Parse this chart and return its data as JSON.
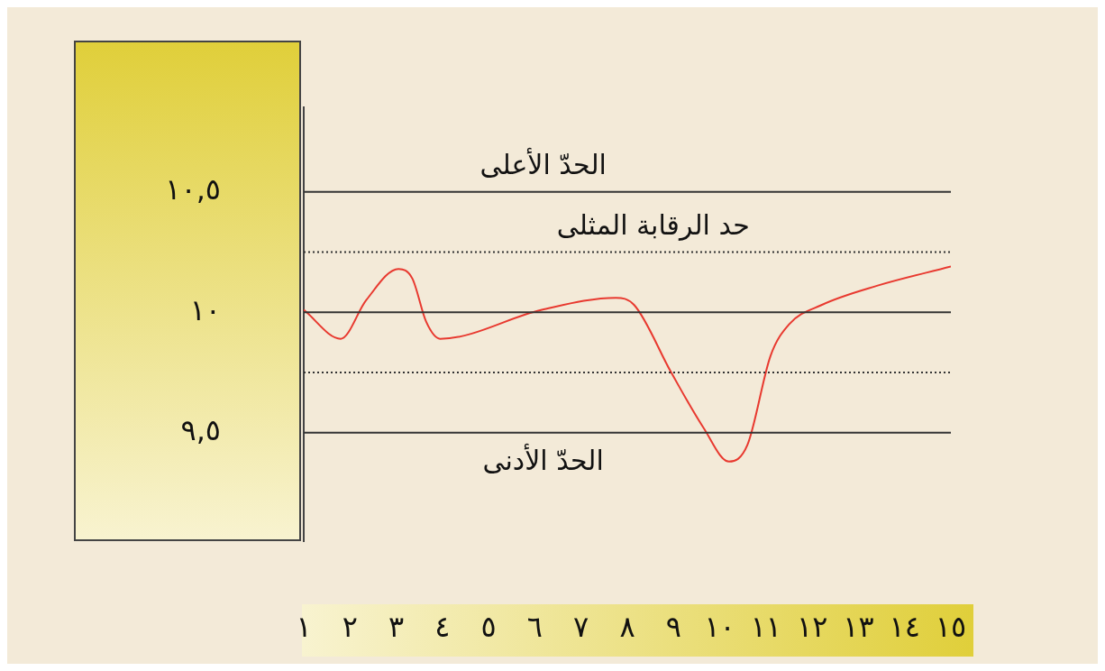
{
  "chart_data": {
    "type": "line",
    "x": [
      1.0,
      1.8,
      2.35,
      3.05,
      3.35,
      3.65,
      3.95,
      6.15,
      7.75,
      8.15,
      8.95,
      9.65,
      10.2,
      10.6,
      11.1,
      11.5,
      12.2,
      13.4,
      15.0
    ],
    "xlim": [
      1,
      15
    ],
    "xticks": [
      {
        "value": 1,
        "label": "١"
      },
      {
        "value": 2,
        "label": "٢"
      },
      {
        "value": 3,
        "label": "٣"
      },
      {
        "value": 4,
        "label": "٤"
      },
      {
        "value": 5,
        "label": "٥"
      },
      {
        "value": 6,
        "label": "٦"
      },
      {
        "value": 7,
        "label": "٧"
      },
      {
        "value": 8,
        "label": "٨"
      },
      {
        "value": 9,
        "label": "٩"
      },
      {
        "value": 10,
        "label": "١٠"
      },
      {
        "value": 11,
        "label": "١١"
      },
      {
        "value": 12,
        "label": "١٢"
      },
      {
        "value": 13,
        "label": "١٣"
      },
      {
        "value": 14,
        "label": "١٤"
      },
      {
        "value": 15,
        "label": "١٥"
      }
    ],
    "ylim": [
      9.05,
      10.85
    ],
    "yticks": [
      {
        "value": 9.5,
        "label": "٩,٥"
      },
      {
        "value": 10,
        "label": "١٠"
      },
      {
        "value": 10.5,
        "label": "١٠,٥"
      }
    ],
    "series": [
      {
        "color": "#e8392f",
        "values": [
          10.01,
          9.89,
          10.05,
          10.18,
          10.14,
          9.96,
          9.89,
          10.01,
          10.06,
          10.03,
          9.75,
          9.52,
          9.38,
          9.45,
          9.82,
          9.95,
          10.03,
          10.11,
          10.19
        ]
      }
    ],
    "ref_lines": [
      {
        "axis": "y",
        "value": 10.5,
        "label": "الحدّ الأعلى",
        "color": "#333333",
        "line_style": "solid"
      },
      {
        "axis": "y",
        "value": 10.25,
        "label": "حد الرقابة المثلى",
        "color": "#333333",
        "line_style": "dotted"
      },
      {
        "axis": "y",
        "value": 10,
        "label": null,
        "color": "#333333",
        "line_style": "solid"
      },
      {
        "axis": "y",
        "value": 9.75,
        "label": null,
        "color": "#333333",
        "line_style": "dotted"
      },
      {
        "axis": "y",
        "value": 9.5,
        "label": "الحدّ الأدنى",
        "color": "#333333",
        "line_style": "solid"
      }
    ],
    "grid": false,
    "legend": false,
    "marker": "none",
    "line_style": "solid"
  }
}
